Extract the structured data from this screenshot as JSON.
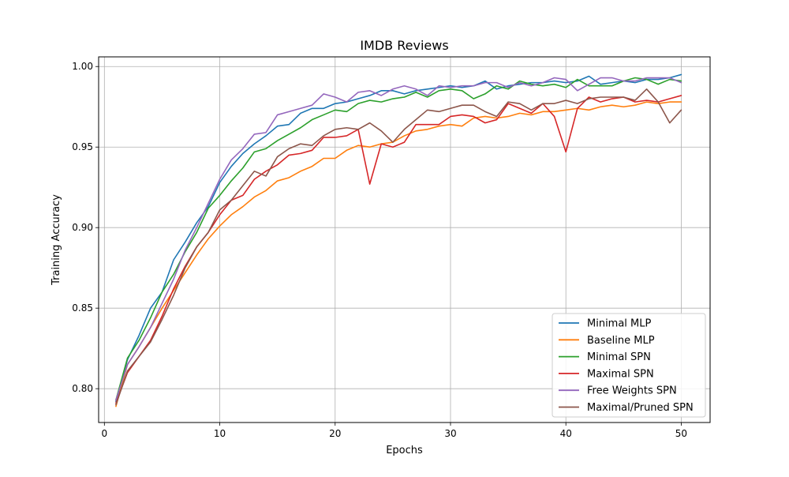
{
  "chart_data": {
    "type": "line",
    "title": "IMDB Reviews",
    "xlabel": "Epochs",
    "ylabel": "Training Accuracy",
    "xlim": [
      -0.5,
      52.5
    ],
    "ylim": [
      0.779,
      1.006
    ],
    "x_ticks": [
      0,
      10,
      20,
      30,
      40,
      50
    ],
    "y_ticks": [
      0.8,
      0.85,
      0.9,
      0.95,
      1.0
    ],
    "y_tick_labels": [
      "0.80",
      "0.85",
      "0.90",
      "0.95",
      "1.00"
    ],
    "grid": true,
    "legend_position": "lower-right",
    "x": [
      1,
      2,
      3,
      4,
      5,
      6,
      7,
      8,
      9,
      10,
      11,
      12,
      13,
      14,
      15,
      16,
      17,
      18,
      19,
      20,
      21,
      22,
      23,
      24,
      25,
      26,
      27,
      28,
      29,
      30,
      31,
      32,
      33,
      34,
      35,
      36,
      37,
      38,
      39,
      40,
      41,
      42,
      43,
      44,
      45,
      46,
      47,
      48,
      49,
      50
    ],
    "series": [
      {
        "name": "Minimal MLP",
        "color": "#1f77b4",
        "values": [
          0.792,
          0.818,
          0.833,
          0.85,
          0.86,
          0.88,
          0.891,
          0.903,
          0.913,
          0.928,
          0.938,
          0.946,
          0.952,
          0.957,
          0.963,
          0.964,
          0.971,
          0.974,
          0.974,
          0.977,
          0.978,
          0.98,
          0.982,
          0.985,
          0.985,
          0.983,
          0.985,
          0.986,
          0.987,
          0.988,
          0.987,
          0.988,
          0.991,
          0.986,
          0.988,
          0.989,
          0.99,
          0.99,
          0.991,
          0.99,
          0.991,
          0.994,
          0.989,
          0.99,
          0.991,
          0.99,
          0.992,
          0.992,
          0.993,
          0.995
        ]
      },
      {
        "name": "Baseline MLP",
        "color": "#ff7f0e",
        "values": [
          0.789,
          0.815,
          0.826,
          0.838,
          0.85,
          0.861,
          0.872,
          0.883,
          0.893,
          0.901,
          0.908,
          0.913,
          0.919,
          0.923,
          0.929,
          0.931,
          0.935,
          0.938,
          0.943,
          0.943,
          0.948,
          0.951,
          0.95,
          0.952,
          0.953,
          0.957,
          0.96,
          0.961,
          0.963,
          0.964,
          0.963,
          0.968,
          0.969,
          0.968,
          0.969,
          0.971,
          0.97,
          0.972,
          0.972,
          0.973,
          0.974,
          0.973,
          0.975,
          0.976,
          0.975,
          0.976,
          0.978,
          0.977,
          0.978,
          0.978
        ]
      },
      {
        "name": "Minimal SPN",
        "color": "#2ca02c",
        "values": [
          0.793,
          0.819,
          0.83,
          0.844,
          0.86,
          0.871,
          0.885,
          0.897,
          0.912,
          0.92,
          0.929,
          0.937,
          0.947,
          0.949,
          0.954,
          0.958,
          0.962,
          0.967,
          0.97,
          0.973,
          0.972,
          0.977,
          0.979,
          0.978,
          0.98,
          0.981,
          0.984,
          0.981,
          0.985,
          0.986,
          0.985,
          0.98,
          0.983,
          0.988,
          0.986,
          0.991,
          0.989,
          0.988,
          0.989,
          0.987,
          0.992,
          0.988,
          0.988,
          0.988,
          0.991,
          0.993,
          0.992,
          0.989,
          0.992,
          0.991
        ]
      },
      {
        "name": "Maximal SPN",
        "color": "#d62728",
        "values": [
          0.791,
          0.81,
          0.82,
          0.83,
          0.845,
          0.862,
          0.876,
          0.888,
          0.897,
          0.908,
          0.917,
          0.92,
          0.93,
          0.935,
          0.939,
          0.945,
          0.946,
          0.948,
          0.956,
          0.956,
          0.957,
          0.961,
          0.927,
          0.952,
          0.95,
          0.953,
          0.964,
          0.964,
          0.964,
          0.969,
          0.97,
          0.969,
          0.965,
          0.967,
          0.977,
          0.974,
          0.971,
          0.977,
          0.969,
          0.947,
          0.974,
          0.981,
          0.978,
          0.98,
          0.981,
          0.978,
          0.979,
          0.978,
          0.98,
          0.982
        ]
      },
      {
        "name": "Free Weights SPN",
        "color": "#9467bd",
        "values": [
          0.793,
          0.815,
          0.826,
          0.838,
          0.853,
          0.868,
          0.886,
          0.9,
          0.915,
          0.93,
          0.942,
          0.949,
          0.958,
          0.959,
          0.97,
          0.972,
          0.974,
          0.976,
          0.983,
          0.981,
          0.978,
          0.984,
          0.985,
          0.982,
          0.986,
          0.988,
          0.986,
          0.982,
          0.988,
          0.987,
          0.988,
          0.988,
          0.99,
          0.99,
          0.987,
          0.99,
          0.988,
          0.99,
          0.993,
          0.992,
          0.985,
          0.989,
          0.993,
          0.993,
          0.991,
          0.991,
          0.993,
          0.993,
          0.993,
          0.99
        ]
      },
      {
        "name": "Maximal/Pruned SPN",
        "color": "#8c564b",
        "values": [
          0.79,
          0.811,
          0.82,
          0.829,
          0.843,
          0.858,
          0.875,
          0.888,
          0.897,
          0.911,
          0.917,
          0.926,
          0.935,
          0.932,
          0.944,
          0.949,
          0.952,
          0.951,
          0.957,
          0.961,
          0.962,
          0.961,
          0.965,
          0.96,
          0.953,
          0.961,
          0.967,
          0.973,
          0.972,
          0.974,
          0.976,
          0.976,
          0.972,
          0.969,
          0.978,
          0.977,
          0.973,
          0.977,
          0.977,
          0.979,
          0.977,
          0.98,
          0.981,
          0.981,
          0.981,
          0.979,
          0.986,
          0.978,
          0.965,
          0.973
        ]
      }
    ]
  }
}
